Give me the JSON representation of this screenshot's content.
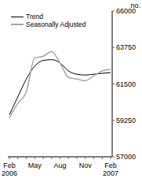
{
  "chart_data": {
    "type": "line",
    "y_label": "no.",
    "categories": [
      "Feb 2006",
      null,
      null,
      "May",
      null,
      null,
      "Aug",
      null,
      null,
      "Nov",
      null,
      null,
      "Feb 2007"
    ],
    "series": [
      {
        "name": "Trend",
        "color": "#000000",
        "values": [
          59600,
          60700,
          61800,
          62600,
          62950,
          63000,
          62800,
          62300,
          62100,
          62050,
          62100,
          62150,
          62200
        ]
      },
      {
        "name": "Seasonally Adjusted",
        "color": "#a6a6a6",
        "values": [
          59400,
          60300,
          61000,
          63100,
          63200,
          63500,
          62800,
          61900,
          61800,
          61700,
          62000,
          62300,
          62400
        ]
      }
    ],
    "ylim": [
      57000,
      66000
    ],
    "yticks": [
      57000,
      59250,
      61500,
      63750,
      66000
    ],
    "legend": "top-left",
    "grid": false
  }
}
